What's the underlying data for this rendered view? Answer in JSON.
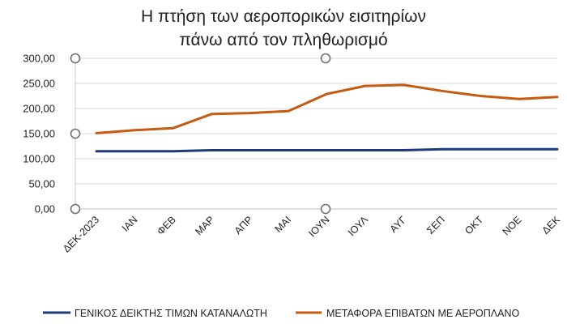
{
  "chart_data": {
    "type": "line",
    "title_lines": [
      "Η πτήση των αεροπορικών εισιτηρίων",
      "πάνω από τον πληθωρισμό"
    ],
    "categories": [
      "ΔΕΚ-2023",
      "ΙΑΝ",
      "ΦΕΒ",
      "ΜΑΡ",
      "ΑΠΡ",
      "ΜΑΙ",
      "ΙΟΥΝ",
      "ΙΟΥΛ",
      "ΑΥΓ",
      "ΣΕΠ",
      "ΟΚΤ",
      "ΝΟΕ",
      "ΔΕΚ"
    ],
    "series": [
      {
        "name": "ΓΕΝΙΚΟΣ ΔΕΙΚΤΗΣ ΤΙΜΩΝ ΚΑΤΑΝΑΛΩΤΗ",
        "color": "#1f3a7a",
        "values": [
          115,
          115,
          115,
          117,
          117,
          117,
          117,
          117,
          117,
          119,
          119,
          119,
          119
        ]
      },
      {
        "name": "ΜΕΤΑΦΟΡΑ ΕΠΙΒΑΤΩΝ ΜΕ ΑΕΡΟΠΛΑΝΟ",
        "color": "#c55a11",
        "values": [
          151,
          157,
          161,
          189,
          191,
          195,
          229,
          245,
          247,
          235,
          225,
          219,
          223
        ]
      }
    ],
    "ylim": [
      0,
      300
    ],
    "yticks": [
      "0,00",
      "50,00",
      "100,00",
      "150,00",
      "200,00",
      "250,00",
      "300,00"
    ],
    "ytick_values": [
      0,
      50,
      100,
      150,
      200,
      250,
      300
    ],
    "grid": true,
    "legend_position": "bottom"
  }
}
